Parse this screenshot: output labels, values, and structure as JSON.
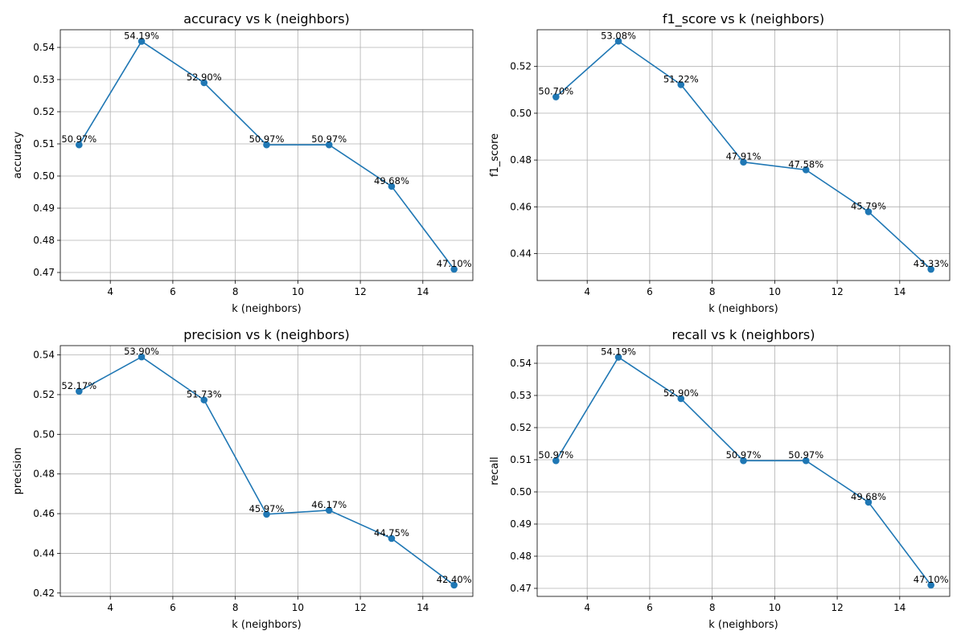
{
  "colors": {
    "line": "#1f77b4",
    "grid": "#b0b0b0",
    "axis": "#000000",
    "background": "#ffffff"
  },
  "chart_data": [
    {
      "type": "line",
      "title": "accuracy vs k (neighbors)",
      "xlabel": "k (neighbors)",
      "ylabel": "accuracy",
      "x": [
        3,
        5,
        7,
        9,
        11,
        13,
        15
      ],
      "series": [
        {
          "values": [
            0.5097,
            0.5419,
            0.529,
            0.5097,
            0.5097,
            0.4968,
            0.471
          ]
        }
      ],
      "data_labels": [
        "50.97%",
        "54.19%",
        "52.90%",
        "50.97%",
        "50.97%",
        "49.68%",
        "47.10%"
      ],
      "xlim": [
        2.4,
        15.6
      ],
      "ylim": [
        0.4675,
        0.5455
      ],
      "xticks": [
        4,
        6,
        8,
        10,
        12,
        14
      ],
      "xtick_labels": [
        "4",
        "6",
        "8",
        "10",
        "12",
        "14"
      ],
      "yticks": [
        0.47,
        0.48,
        0.49,
        0.5,
        0.51,
        0.52,
        0.53,
        0.54
      ],
      "ytick_labels": [
        "0.47",
        "0.48",
        "0.49",
        "0.50",
        "0.51",
        "0.52",
        "0.53",
        "0.54"
      ],
      "grid": true,
      "marker": "circle"
    },
    {
      "type": "line",
      "title": "f1_score vs k (neighbors)",
      "xlabel": "k (neighbors)",
      "ylabel": "f1_score",
      "x": [
        3,
        5,
        7,
        9,
        11,
        13,
        15
      ],
      "series": [
        {
          "values": [
            0.507,
            0.5308,
            0.5122,
            0.4791,
            0.4758,
            0.4579,
            0.4333
          ]
        }
      ],
      "data_labels": [
        "50.70%",
        "53.08%",
        "51.22%",
        "47.91%",
        "47.58%",
        "45.79%",
        "43.33%"
      ],
      "xlim": [
        2.4,
        15.6
      ],
      "ylim": [
        0.4285,
        0.5357
      ],
      "xticks": [
        4,
        6,
        8,
        10,
        12,
        14
      ],
      "xtick_labels": [
        "4",
        "6",
        "8",
        "10",
        "12",
        "14"
      ],
      "yticks": [
        0.44,
        0.46,
        0.48,
        0.5,
        0.52
      ],
      "ytick_labels": [
        "0.44",
        "0.46",
        "0.48",
        "0.50",
        "0.52"
      ],
      "grid": true,
      "marker": "circle"
    },
    {
      "type": "line",
      "title": "precision vs k (neighbors)",
      "xlabel": "k (neighbors)",
      "ylabel": "precision",
      "x": [
        3,
        5,
        7,
        9,
        11,
        13,
        15
      ],
      "series": [
        {
          "values": [
            0.5217,
            0.539,
            0.5173,
            0.4597,
            0.4617,
            0.4475,
            0.424
          ]
        }
      ],
      "data_labels": [
        "52.17%",
        "53.90%",
        "51.73%",
        "45.97%",
        "46.17%",
        "44.75%",
        "42.40%"
      ],
      "xlim": [
        2.4,
        15.6
      ],
      "ylim": [
        0.4183,
        0.5447
      ],
      "xticks": [
        4,
        6,
        8,
        10,
        12,
        14
      ],
      "xtick_labels": [
        "4",
        "6",
        "8",
        "10",
        "12",
        "14"
      ],
      "yticks": [
        0.42,
        0.44,
        0.46,
        0.48,
        0.5,
        0.52,
        0.54
      ],
      "ytick_labels": [
        "0.42",
        "0.44",
        "0.46",
        "0.48",
        "0.50",
        "0.52",
        "0.54"
      ],
      "grid": true,
      "marker": "circle"
    },
    {
      "type": "line",
      "title": "recall vs k (neighbors)",
      "xlabel": "k (neighbors)",
      "ylabel": "recall",
      "x": [
        3,
        5,
        7,
        9,
        11,
        13,
        15
      ],
      "series": [
        {
          "values": [
            0.5097,
            0.5419,
            0.529,
            0.5097,
            0.5097,
            0.4968,
            0.471
          ]
        }
      ],
      "data_labels": [
        "50.97%",
        "54.19%",
        "52.90%",
        "50.97%",
        "50.97%",
        "49.68%",
        "47.10%"
      ],
      "xlim": [
        2.4,
        15.6
      ],
      "ylim": [
        0.4675,
        0.5455
      ],
      "xticks": [
        4,
        6,
        8,
        10,
        12,
        14
      ],
      "xtick_labels": [
        "4",
        "6",
        "8",
        "10",
        "12",
        "14"
      ],
      "yticks": [
        0.47,
        0.48,
        0.49,
        0.5,
        0.51,
        0.52,
        0.53,
        0.54
      ],
      "ytick_labels": [
        "0.47",
        "0.48",
        "0.49",
        "0.50",
        "0.51",
        "0.52",
        "0.53",
        "0.54"
      ],
      "grid": true,
      "marker": "circle"
    }
  ]
}
